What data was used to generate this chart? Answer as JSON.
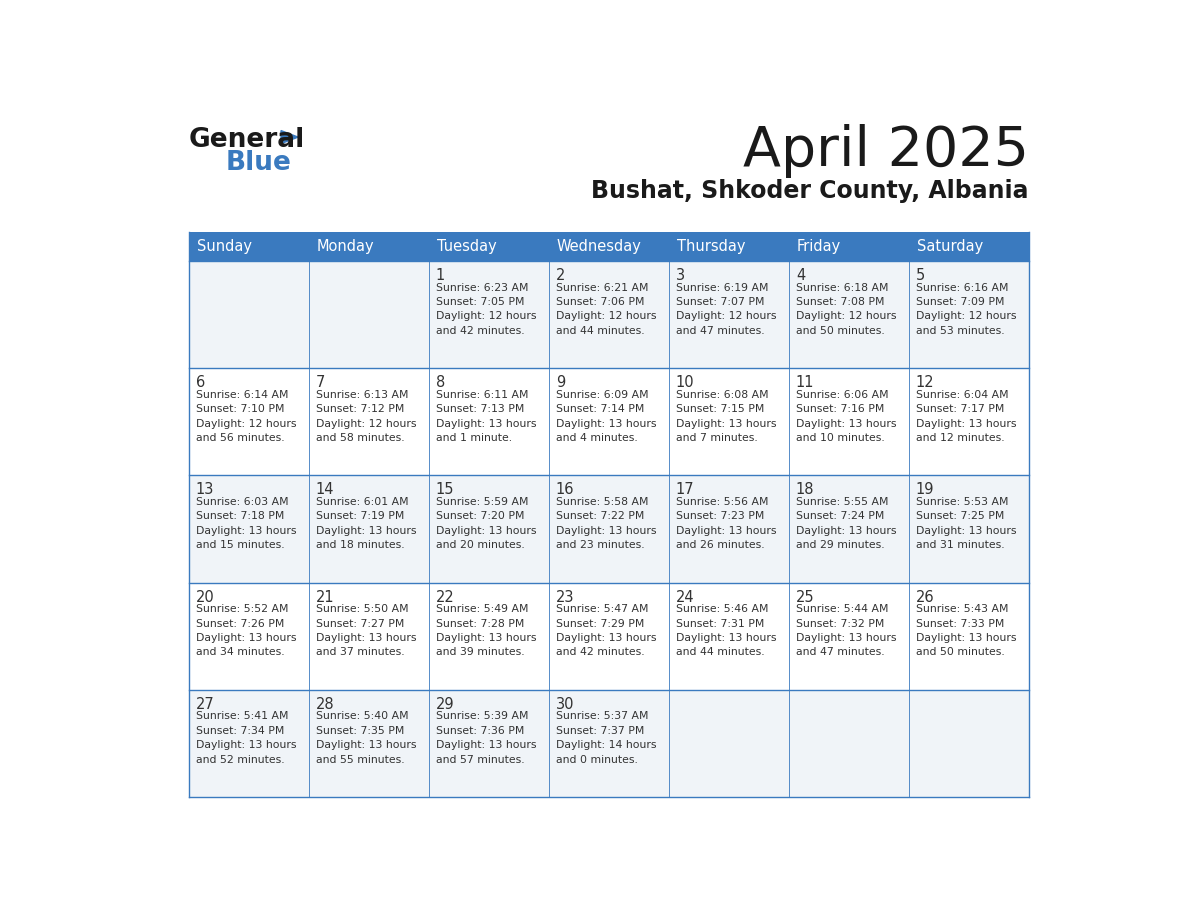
{
  "title": "April 2025",
  "subtitle": "Bushat, Shkoder County, Albania",
  "header_bg_color": "#3a7abf",
  "header_text_color": "#ffffff",
  "day_names": [
    "Sunday",
    "Monday",
    "Tuesday",
    "Wednesday",
    "Thursday",
    "Friday",
    "Saturday"
  ],
  "row_bg_colors": [
    "#f0f4f8",
    "#ffffff"
  ],
  "cell_border_color": "#3a7abf",
  "text_color": "#333333",
  "title_color": "#1a1a1a",
  "subtitle_color": "#1a1a1a",
  "logo_color1": "#1a1a1a",
  "logo_color2": "#3a7abf",
  "logo_triangle_color": "#3a7abf",
  "calendar": [
    [
      {
        "day": "",
        "info": ""
      },
      {
        "day": "",
        "info": ""
      },
      {
        "day": "1",
        "info": "Sunrise: 6:23 AM\nSunset: 7:05 PM\nDaylight: 12 hours\nand 42 minutes."
      },
      {
        "day": "2",
        "info": "Sunrise: 6:21 AM\nSunset: 7:06 PM\nDaylight: 12 hours\nand 44 minutes."
      },
      {
        "day": "3",
        "info": "Sunrise: 6:19 AM\nSunset: 7:07 PM\nDaylight: 12 hours\nand 47 minutes."
      },
      {
        "day": "4",
        "info": "Sunrise: 6:18 AM\nSunset: 7:08 PM\nDaylight: 12 hours\nand 50 minutes."
      },
      {
        "day": "5",
        "info": "Sunrise: 6:16 AM\nSunset: 7:09 PM\nDaylight: 12 hours\nand 53 minutes."
      }
    ],
    [
      {
        "day": "6",
        "info": "Sunrise: 6:14 AM\nSunset: 7:10 PM\nDaylight: 12 hours\nand 56 minutes."
      },
      {
        "day": "7",
        "info": "Sunrise: 6:13 AM\nSunset: 7:12 PM\nDaylight: 12 hours\nand 58 minutes."
      },
      {
        "day": "8",
        "info": "Sunrise: 6:11 AM\nSunset: 7:13 PM\nDaylight: 13 hours\nand 1 minute."
      },
      {
        "day": "9",
        "info": "Sunrise: 6:09 AM\nSunset: 7:14 PM\nDaylight: 13 hours\nand 4 minutes."
      },
      {
        "day": "10",
        "info": "Sunrise: 6:08 AM\nSunset: 7:15 PM\nDaylight: 13 hours\nand 7 minutes."
      },
      {
        "day": "11",
        "info": "Sunrise: 6:06 AM\nSunset: 7:16 PM\nDaylight: 13 hours\nand 10 minutes."
      },
      {
        "day": "12",
        "info": "Sunrise: 6:04 AM\nSunset: 7:17 PM\nDaylight: 13 hours\nand 12 minutes."
      }
    ],
    [
      {
        "day": "13",
        "info": "Sunrise: 6:03 AM\nSunset: 7:18 PM\nDaylight: 13 hours\nand 15 minutes."
      },
      {
        "day": "14",
        "info": "Sunrise: 6:01 AM\nSunset: 7:19 PM\nDaylight: 13 hours\nand 18 minutes."
      },
      {
        "day": "15",
        "info": "Sunrise: 5:59 AM\nSunset: 7:20 PM\nDaylight: 13 hours\nand 20 minutes."
      },
      {
        "day": "16",
        "info": "Sunrise: 5:58 AM\nSunset: 7:22 PM\nDaylight: 13 hours\nand 23 minutes."
      },
      {
        "day": "17",
        "info": "Sunrise: 5:56 AM\nSunset: 7:23 PM\nDaylight: 13 hours\nand 26 minutes."
      },
      {
        "day": "18",
        "info": "Sunrise: 5:55 AM\nSunset: 7:24 PM\nDaylight: 13 hours\nand 29 minutes."
      },
      {
        "day": "19",
        "info": "Sunrise: 5:53 AM\nSunset: 7:25 PM\nDaylight: 13 hours\nand 31 minutes."
      }
    ],
    [
      {
        "day": "20",
        "info": "Sunrise: 5:52 AM\nSunset: 7:26 PM\nDaylight: 13 hours\nand 34 minutes."
      },
      {
        "day": "21",
        "info": "Sunrise: 5:50 AM\nSunset: 7:27 PM\nDaylight: 13 hours\nand 37 minutes."
      },
      {
        "day": "22",
        "info": "Sunrise: 5:49 AM\nSunset: 7:28 PM\nDaylight: 13 hours\nand 39 minutes."
      },
      {
        "day": "23",
        "info": "Sunrise: 5:47 AM\nSunset: 7:29 PM\nDaylight: 13 hours\nand 42 minutes."
      },
      {
        "day": "24",
        "info": "Sunrise: 5:46 AM\nSunset: 7:31 PM\nDaylight: 13 hours\nand 44 minutes."
      },
      {
        "day": "25",
        "info": "Sunrise: 5:44 AM\nSunset: 7:32 PM\nDaylight: 13 hours\nand 47 minutes."
      },
      {
        "day": "26",
        "info": "Sunrise: 5:43 AM\nSunset: 7:33 PM\nDaylight: 13 hours\nand 50 minutes."
      }
    ],
    [
      {
        "day": "27",
        "info": "Sunrise: 5:41 AM\nSunset: 7:34 PM\nDaylight: 13 hours\nand 52 minutes."
      },
      {
        "day": "28",
        "info": "Sunrise: 5:40 AM\nSunset: 7:35 PM\nDaylight: 13 hours\nand 55 minutes."
      },
      {
        "day": "29",
        "info": "Sunrise: 5:39 AM\nSunset: 7:36 PM\nDaylight: 13 hours\nand 57 minutes."
      },
      {
        "day": "30",
        "info": "Sunrise: 5:37 AM\nSunset: 7:37 PM\nDaylight: 14 hours\nand 0 minutes."
      },
      {
        "day": "",
        "info": ""
      },
      {
        "day": "",
        "info": ""
      },
      {
        "day": "",
        "info": ""
      }
    ]
  ]
}
